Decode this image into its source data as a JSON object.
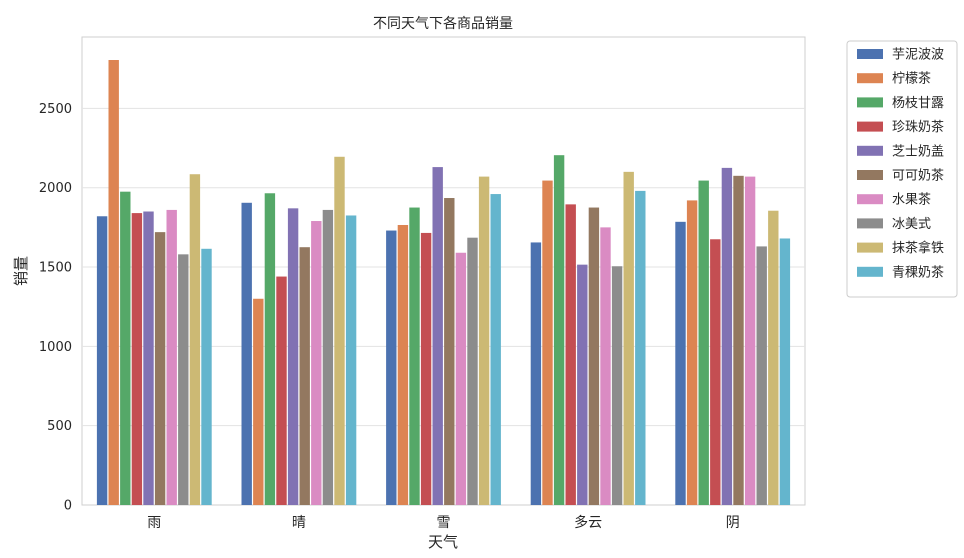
{
  "chart_data": {
    "type": "bar",
    "title": "不同天气下各商品销量",
    "xlabel": "天气",
    "ylabel": "销量",
    "categories": [
      "雨",
      "晴",
      "雪",
      "多云",
      "阴"
    ],
    "ylim": [
      0,
      2950
    ],
    "yticks": [
      0,
      500,
      1000,
      1500,
      2000,
      2500
    ],
    "grid": "horizontal",
    "legend": "outside-top-right",
    "series": [
      {
        "name": "芋泥波波",
        "color": "#4c72b0",
        "values": [
          1820,
          1905,
          1730,
          1655,
          1785
        ]
      },
      {
        "name": "柠檬茶",
        "color": "#dd8452",
        "values": [
          2805,
          1300,
          1765,
          2045,
          1920
        ]
      },
      {
        "name": "杨枝甘露",
        "color": "#55a868",
        "values": [
          1975,
          1965,
          1875,
          2205,
          2045
        ]
      },
      {
        "name": "珍珠奶茶",
        "color": "#c44e52",
        "values": [
          1840,
          1440,
          1715,
          1895,
          1675
        ]
      },
      {
        "name": "芝士奶盖",
        "color": "#8172b3",
        "values": [
          1850,
          1870,
          2130,
          1515,
          2125
        ]
      },
      {
        "name": "可可奶茶",
        "color": "#937860",
        "values": [
          1720,
          1625,
          1935,
          1875,
          2075
        ]
      },
      {
        "name": "水果茶",
        "color": "#da8bc3",
        "values": [
          1860,
          1790,
          1590,
          1750,
          2070
        ]
      },
      {
        "name": "冰美式",
        "color": "#8c8c8c",
        "values": [
          1580,
          1860,
          1685,
          1505,
          1630
        ]
      },
      {
        "name": "抹茶拿铁",
        "color": "#ccb974",
        "values": [
          2085,
          2195,
          2070,
          2100,
          1855
        ]
      },
      {
        "name": "青稞奶茶",
        "color": "#64b5cd",
        "values": [
          1615,
          1825,
          1960,
          1980,
          1680
        ]
      }
    ]
  }
}
